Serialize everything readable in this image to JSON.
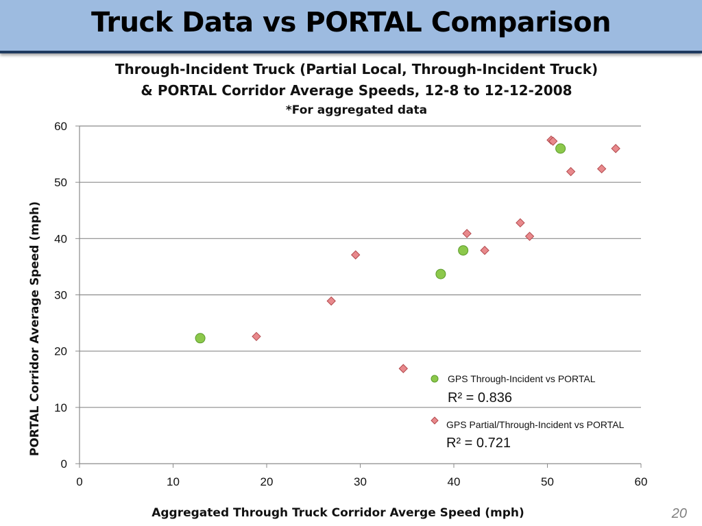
{
  "slide": {
    "title": "Truck Data vs PORTAL Comparison",
    "page_number": "20"
  },
  "colors": {
    "header_bg": "#9dbbe0",
    "header_border": "#1f3a5f",
    "gps_marker": "#8cc84b",
    "partial_marker": "#e8898c"
  },
  "chart_data": {
    "type": "scatter",
    "title_lines": [
      "Through-Incident Truck (Partial Local, Through-Incident Truck)",
      "& PORTAL Corridor Average Speeds, 12-8 to 12-12-2008",
      "*For aggregated data"
    ],
    "xlabel": "Aggregated Through Truck Corridor Averge Speed (mph)",
    "ylabel": "PORTAL Corridor Average Speed (mph)",
    "xlim": [
      0,
      60
    ],
    "ylim": [
      0,
      60
    ],
    "xticks": [
      0,
      10,
      20,
      30,
      40,
      50,
      60
    ],
    "yticks": [
      0,
      10,
      20,
      30,
      40,
      50,
      60
    ],
    "grid": "horizontal",
    "legend_position": "bottom-right",
    "series": [
      {
        "name": "GPS Through-Incident vs PORTAL",
        "stat": "R² = 0.836",
        "marker": "circle",
        "color": "#8cc84b",
        "points": [
          {
            "x": 12.9,
            "y": 22.3
          },
          {
            "x": 38.6,
            "y": 33.7
          },
          {
            "x": 41.0,
            "y": 37.9
          },
          {
            "x": 51.4,
            "y": 56.0
          }
        ]
      },
      {
        "name": "GPS Partial/Through-Incident vs PORTAL",
        "stat": "R² = 0.721",
        "marker": "diamond",
        "color": "#e8898c",
        "points": [
          {
            "x": 18.9,
            "y": 22.6
          },
          {
            "x": 26.9,
            "y": 28.9
          },
          {
            "x": 29.5,
            "y": 37.1
          },
          {
            "x": 34.6,
            "y": 16.9
          },
          {
            "x": 41.4,
            "y": 40.9
          },
          {
            "x": 43.3,
            "y": 37.9
          },
          {
            "x": 47.1,
            "y": 42.8
          },
          {
            "x": 48.1,
            "y": 40.4
          },
          {
            "x": 50.4,
            "y": 57.5
          },
          {
            "x": 50.6,
            "y": 57.3
          },
          {
            "x": 52.5,
            "y": 51.9
          },
          {
            "x": 55.8,
            "y": 52.4
          },
          {
            "x": 57.3,
            "y": 56.0
          }
        ]
      }
    ]
  }
}
